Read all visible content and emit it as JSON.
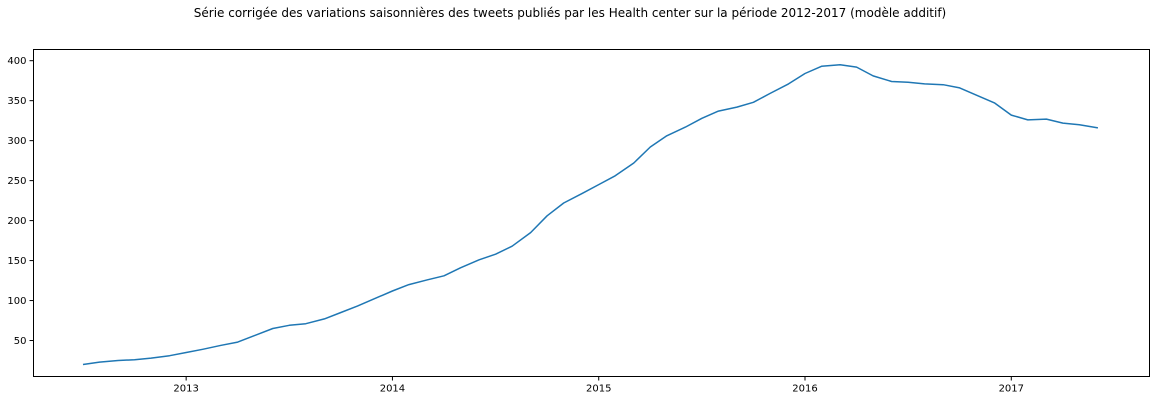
{
  "chart_data": {
    "type": "line",
    "title": "Série corrigée des variations saisonnières des tweets publiés par les Health center sur la période 2012-2017 (modèle additif)",
    "xlabel": "",
    "ylabel": "",
    "grid": false,
    "legend": "none",
    "x_ticks": [
      "2013",
      "2014",
      "2015",
      "2016",
      "2017"
    ],
    "y_ticks": [
      50,
      100,
      150,
      200,
      250,
      300,
      350,
      400
    ],
    "ylim": [
      5,
      414
    ],
    "xlim": [
      2012.26,
      2017.67
    ],
    "series": [
      {
        "color": "#1f77b4",
        "x": [
          2012.5,
          2012.58,
          2012.67,
          2012.75,
          2012.83,
          2012.92,
          2013.0,
          2013.08,
          2013.17,
          2013.25,
          2013.33,
          2013.42,
          2013.5,
          2013.58,
          2013.67,
          2013.75,
          2013.83,
          2013.92,
          2014.0,
          2014.08,
          2014.17,
          2014.25,
          2014.33,
          2014.42,
          2014.5,
          2014.58,
          2014.67,
          2014.75,
          2014.83,
          2014.92,
          2015.0,
          2015.08,
          2015.17,
          2015.25,
          2015.33,
          2015.42,
          2015.5,
          2015.58,
          2015.67,
          2015.75,
          2015.83,
          2015.92,
          2016.0,
          2016.08,
          2016.17,
          2016.25,
          2016.33,
          2016.42,
          2016.5,
          2016.58,
          2016.67,
          2016.75,
          2016.83,
          2016.92,
          2017.0,
          2017.08,
          2017.17,
          2017.25,
          2017.33,
          2017.42
        ],
        "values": [
          20,
          23,
          25,
          26,
          28,
          31,
          35,
          39,
          44,
          48,
          56,
          65,
          69,
          71,
          77,
          85,
          93,
          103,
          112,
          120,
          126,
          131,
          141,
          151,
          158,
          168,
          185,
          206,
          222,
          234,
          245,
          256,
          272,
          292,
          306,
          317,
          328,
          337,
          342,
          348,
          359,
          371,
          384,
          393,
          395,
          392,
          381,
          374,
          373,
          371,
          370,
          366,
          357,
          347,
          332,
          326,
          327,
          322,
          320,
          316
        ]
      }
    ]
  }
}
